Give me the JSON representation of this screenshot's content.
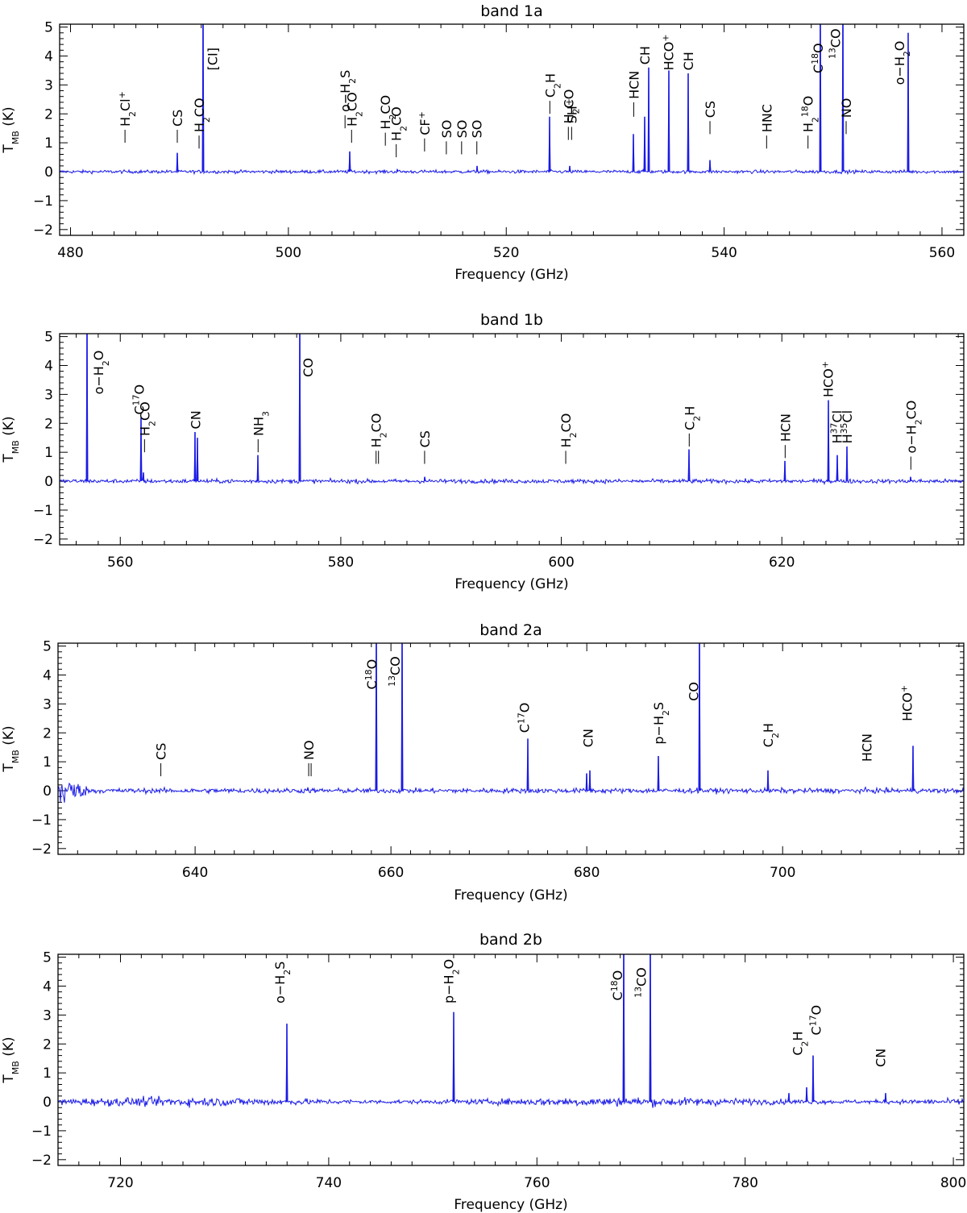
{
  "colors": {
    "spectrum": "#1a1ae6",
    "axis": "#000000"
  },
  "chart_data": [
    {
      "type": "line",
      "title": "band 1a",
      "xlabel": "Frequency (GHz)",
      "ylabel": "T_MB (K)",
      "ylabel_main": "T",
      "ylabel_sub": "MB",
      "ylabel_unit": "(K)",
      "xlim": [
        479,
        562
      ],
      "ylim": [
        -2.2,
        5.1
      ],
      "xticks": [
        480,
        500,
        520,
        540,
        560
      ],
      "yticks": [
        -2,
        -1,
        0,
        1,
        2,
        3,
        4,
        5
      ],
      "noise": 0.04,
      "peaks": [
        {
          "x": 489.8,
          "y": 0.65
        },
        {
          "x": 492.16,
          "y": 6.0
        },
        {
          "x": 505.6,
          "y": 0.7
        },
        {
          "x": 510.0,
          "y": 0.08
        },
        {
          "x": 517.3,
          "y": 0.2
        },
        {
          "x": 524.0,
          "y": 1.9
        },
        {
          "x": 525.8,
          "y": 0.2
        },
        {
          "x": 531.7,
          "y": 1.3
        },
        {
          "x": 532.7,
          "y": 1.9
        },
        {
          "x": 533.1,
          "y": 3.6
        },
        {
          "x": 534.9,
          "y": 3.5
        },
        {
          "x": 536.7,
          "y": 3.4
        },
        {
          "x": 538.7,
          "y": 0.4
        },
        {
          "x": 548.8,
          "y": 6.0
        },
        {
          "x": 550.9,
          "y": 6.0
        },
        {
          "x": 556.9,
          "y": 4.8
        }
      ],
      "annotations": [
        {
          "x": 485.0,
          "label": [
            "H",
            {
              "sub": "2"
            },
            "Cl",
            {
              "sup": "+"
            }
          ],
          "y": 1.0,
          "len": 0.45
        },
        {
          "x": 489.8,
          "label": [
            "CS"
          ],
          "y": 1.0,
          "len": 0.45
        },
        {
          "x": 491.8,
          "label": [
            "H",
            {
              "sub": "2"
            },
            "CO"
          ],
          "y": 0.8,
          "len": 0.45
        },
        {
          "x": 493.0,
          "label": [
            "[CI]"
          ],
          "y": 3.5,
          "len": 0
        },
        {
          "x": 505.2,
          "label": [
            "o−H",
            {
              "sub": "2"
            },
            "S"
          ],
          "y": 1.5,
          "len": 0.45
        },
        {
          "x": 505.8,
          "label": [
            "H",
            {
              "sub": "2"
            },
            "CO"
          ],
          "y": 1.0,
          "len": 0.45
        },
        {
          "x": 508.9,
          "label": [
            "H",
            {
              "sub": "2"
            },
            "CO"
          ],
          "y": 0.9,
          "len": 0.45
        },
        {
          "x": 509.9,
          "label": [
            "H",
            {
              "sub": "2"
            },
            "CO"
          ],
          "y": 0.5,
          "len": 0.45
        },
        {
          "x": 512.5,
          "label": [
            "CF",
            {
              "sup": "+"
            }
          ],
          "y": 0.7,
          "len": 0.45
        },
        {
          "x": 514.5,
          "label": [
            "SO"
          ],
          "y": 0.6,
          "len": 0.45
        },
        {
          "x": 515.9,
          "label": [
            "SO"
          ],
          "y": 0.6,
          "len": 0.45
        },
        {
          "x": 517.3,
          "label": [
            "SO"
          ],
          "y": 0.6,
          "len": 0.45
        },
        {
          "x": 524.0,
          "label": [
            "C",
            {
              "sub": "2"
            },
            "H"
          ],
          "y": 2.0,
          "len": 0.45
        },
        {
          "x": 525.7,
          "label": [
            "H",
            {
              "sub": "2"
            },
            "CO"
          ],
          "y": 1.1,
          "len": 0.45
        },
        {
          "x": 526.0,
          "label": [
            "SH",
            {
              "sup": "+"
            }
          ],
          "y": 1.1,
          "len": 0.45
        },
        {
          "x": 531.7,
          "label": [
            "HCN"
          ],
          "y": 1.9,
          "len": 0.5
        },
        {
          "x": 532.7,
          "label": [
            "CH"
          ],
          "y": 3.7,
          "len": 0
        },
        {
          "x": 534.9,
          "label": [
            "HCO",
            {
              "sup": "+"
            }
          ],
          "y": 3.5,
          "len": 0
        },
        {
          "x": 536.7,
          "label": [
            "CH"
          ],
          "y": 3.5,
          "len": 0
        },
        {
          "x": 538.7,
          "label": [
            "CS"
          ],
          "y": 1.3,
          "len": 0.45
        },
        {
          "x": 543.9,
          "label": [
            "HNC"
          ],
          "y": 0.8,
          "len": 0.45
        },
        {
          "x": 547.7,
          "label": [
            "H",
            {
              "sub": "2"
            },
            {
              "sup": "18"
            },
            "O"
          ],
          "y": 0.8,
          "len": 0.45
        },
        {
          "x": 548.6,
          "label": [
            "C",
            {
              "sup": "18"
            },
            "O"
          ],
          "y": 3.4,
          "len": 0
        },
        {
          "x": 550.2,
          "label": [
            "",
            {
              "sup": "13"
            },
            "CO"
          ],
          "y": 3.9,
          "len": 0
        },
        {
          "x": 551.2,
          "label": [
            "NO"
          ],
          "y": 1.3,
          "len": 0.45
        },
        {
          "x": 556.1,
          "label": [
            "o−H",
            {
              "sub": "2"
            },
            "O"
          ],
          "y": 3.0,
          "len": 0
        }
      ]
    },
    {
      "type": "line",
      "title": "band 1b",
      "xlabel": "Frequency (GHz)",
      "ylabel": "T_MB (K)",
      "ylabel_main": "T",
      "ylabel_sub": "MB",
      "ylabel_unit": "(K)",
      "xlim": [
        554.5,
        636.5
      ],
      "ylim": [
        -2.2,
        5.1
      ],
      "xticks": [
        560,
        580,
        600,
        620
      ],
      "yticks": [
        -2,
        -1,
        0,
        1,
        2,
        3,
        4,
        5
      ],
      "noise": 0.05,
      "peaks": [
        {
          "x": 557.0,
          "y": 6.0
        },
        {
          "x": 561.9,
          "y": 2.2
        },
        {
          "x": 562.1,
          "y": 0.3
        },
        {
          "x": 566.8,
          "y": 1.7
        },
        {
          "x": 567.0,
          "y": 1.5
        },
        {
          "x": 572.5,
          "y": 0.9
        },
        {
          "x": 576.27,
          "y": 6.0
        },
        {
          "x": 587.6,
          "y": 0.15
        },
        {
          "x": 611.6,
          "y": 1.1
        },
        {
          "x": 620.3,
          "y": 0.7
        },
        {
          "x": 624.2,
          "y": 2.8
        },
        {
          "x": 625.0,
          "y": 0.9
        },
        {
          "x": 625.9,
          "y": 1.2
        },
        {
          "x": 631.7,
          "y": 0.15
        }
      ],
      "annotations": [
        {
          "x": 558.0,
          "label": [
            "o−H",
            {
              "sub": "2"
            },
            "O"
          ],
          "y": 3.0,
          "len": 0
        },
        {
          "x": 561.7,
          "label": [
            "C",
            {
              "sup": "17"
            },
            "O"
          ],
          "y": 2.3,
          "len": 0
        },
        {
          "x": 562.2,
          "label": [
            "H",
            {
              "sub": "2"
            },
            "CO"
          ],
          "y": 1.0,
          "len": 0.45
        },
        {
          "x": 566.8,
          "label": [
            "CN"
          ],
          "y": 1.8,
          "len": 0
        },
        {
          "x": 572.5,
          "label": [
            "NH",
            {
              "sub": "3"
            }
          ],
          "y": 1.0,
          "len": 0.45
        },
        {
          "x": 577.0,
          "label": [
            "CO"
          ],
          "y": 3.6,
          "len": 0
        },
        {
          "x": 583.2,
          "label": [
            "H",
            {
              "sub": "2"
            },
            "CO"
          ],
          "y": 0.6,
          "len": 0.45,
          "double": true
        },
        {
          "x": 587.6,
          "label": [
            "CS"
          ],
          "y": 0.6,
          "len": 0.45
        },
        {
          "x": 600.4,
          "label": [
            "H",
            {
              "sub": "2"
            },
            "CO"
          ],
          "y": 0.6,
          "len": 0.45
        },
        {
          "x": 611.6,
          "label": [
            "C",
            {
              "sub": "2"
            },
            "H"
          ],
          "y": 1.2,
          "len": 0.45
        },
        {
          "x": 620.3,
          "label": [
            "HCN"
          ],
          "y": 0.8,
          "len": 0.45
        },
        {
          "x": 624.2,
          "label": [
            "HCO",
            {
              "sup": "+"
            }
          ],
          "y": 2.9,
          "len": 0
        },
        {
          "x": 625.0,
          "label": [
            "H",
            {
              "sup": "37"
            },
            "Cl"
          ],
          "y": 1.3,
          "len": 0
        },
        {
          "x": 625.9,
          "label": [
            "H",
            {
              "sup": "35"
            },
            "Cl"
          ],
          "y": 1.3,
          "len": 0
        },
        {
          "x": 631.7,
          "label": [
            "o−H",
            {
              "sub": "2"
            },
            "CO"
          ],
          "y": 0.4,
          "len": 0.45
        }
      ]
    },
    {
      "type": "line",
      "title": "band 2a",
      "xlabel": "Frequency (GHz)",
      "ylabel": "T_MB (K)",
      "ylabel_main": "T",
      "ylabel_sub": "MB",
      "ylabel_unit": "(K)",
      "xlim": [
        626,
        718.5
      ],
      "ylim": [
        -2.2,
        5.1
      ],
      "xticks": [
        640,
        660,
        680,
        700
      ],
      "yticks": [
        -2,
        -1,
        0,
        1,
        2,
        3,
        4,
        5
      ],
      "noise": 0.06,
      "peaks": [
        {
          "x": 651.5,
          "y": 0.1
        },
        {
          "x": 658.5,
          "y": 6.0
        },
        {
          "x": 661.1,
          "y": 6.0
        },
        {
          "x": 674.0,
          "y": 1.8
        },
        {
          "x": 680.0,
          "y": 0.6
        },
        {
          "x": 680.3,
          "y": 0.7
        },
        {
          "x": 687.3,
          "y": 1.2
        },
        {
          "x": 691.5,
          "y": 6.0
        },
        {
          "x": 698.5,
          "y": 0.7
        },
        {
          "x": 713.3,
          "y": 1.55
        }
      ],
      "annotations": [
        {
          "x": 636.5,
          "label": [
            "CS"
          ],
          "y": 0.5,
          "len": 0.45
        },
        {
          "x": 651.6,
          "label": [
            "NO"
          ],
          "y": 0.5,
          "len": 0.45,
          "double": true
        },
        {
          "x": 658.0,
          "label": [
            "C",
            {
              "sup": "18"
            },
            "O"
          ],
          "y": 3.5,
          "len": 0
        },
        {
          "x": 660.4,
          "label": [
            "",
            {
              "sup": "13"
            },
            "CO"
          ],
          "y": 3.6,
          "len": 0
        },
        {
          "x": 673.6,
          "label": [
            "C",
            {
              "sup": "17"
            },
            "O"
          ],
          "y": 2.0,
          "len": 0
        },
        {
          "x": 680.1,
          "label": [
            "CN"
          ],
          "y": 1.5,
          "len": 0
        },
        {
          "x": 687.3,
          "label": [
            "p−H",
            {
              "sub": "2"
            },
            "S"
          ],
          "y": 1.6,
          "len": 0
        },
        {
          "x": 690.9,
          "label": [
            "CO"
          ],
          "y": 3.1,
          "len": 0
        },
        {
          "x": 698.5,
          "label": [
            "C",
            {
              "sub": "2"
            },
            "H"
          ],
          "y": 1.5,
          "len": 0
        },
        {
          "x": 708.6,
          "label": [
            "HCN"
          ],
          "y": 1.0,
          "len": 0
        },
        {
          "x": 712.7,
          "label": [
            "HCO",
            {
              "sup": "+"
            }
          ],
          "y": 2.4,
          "len": 0
        }
      ]
    },
    {
      "type": "line",
      "title": "band 2b",
      "xlabel": "Frequency (GHz)",
      "ylabel": "T_MB (K)",
      "ylabel_main": "T",
      "ylabel_sub": "MB",
      "ylabel_unit": "(K)",
      "xlim": [
        714,
        801
      ],
      "ylim": [
        -2.2,
        5.1
      ],
      "xticks": [
        720,
        740,
        760,
        780,
        800
      ],
      "yticks": [
        -2,
        -1,
        0,
        1,
        2,
        3,
        4,
        5
      ],
      "noise": 0.08,
      "peaks": [
        {
          "x": 736.0,
          "y": 2.7
        },
        {
          "x": 752.0,
          "y": 3.1
        },
        {
          "x": 768.3,
          "y": 6.0
        },
        {
          "x": 770.9,
          "y": 6.0
        },
        {
          "x": 784.2,
          "y": 0.3
        },
        {
          "x": 785.9,
          "y": 0.5
        },
        {
          "x": 786.5,
          "y": 1.6
        },
        {
          "x": 793.5,
          "y": 0.3
        }
      ],
      "annotations": [
        {
          "x": 735.3,
          "label": [
            "o−H",
            {
              "sub": "2"
            },
            "S"
          ],
          "y": 3.4,
          "len": 0
        },
        {
          "x": 751.5,
          "label": [
            "p−H",
            {
              "sub": "2"
            },
            "O"
          ],
          "y": 3.4,
          "len": 0
        },
        {
          "x": 767.7,
          "label": [
            "C",
            {
              "sup": "18"
            },
            "O"
          ],
          "y": 3.5,
          "len": 0
        },
        {
          "x": 770.0,
          "label": [
            "",
            {
              "sup": "13"
            },
            "CO"
          ],
          "y": 3.6,
          "len": 0
        },
        {
          "x": 785.0,
          "label": [
            "C",
            {
              "sub": "2"
            },
            "H"
          ],
          "y": 1.6,
          "len": 0
        },
        {
          "x": 786.8,
          "label": [
            "C",
            {
              "sup": "17"
            },
            "O"
          ],
          "y": 2.3,
          "len": 0
        },
        {
          "x": 793.0,
          "label": [
            "CN"
          ],
          "y": 1.2,
          "len": 0
        }
      ]
    }
  ]
}
